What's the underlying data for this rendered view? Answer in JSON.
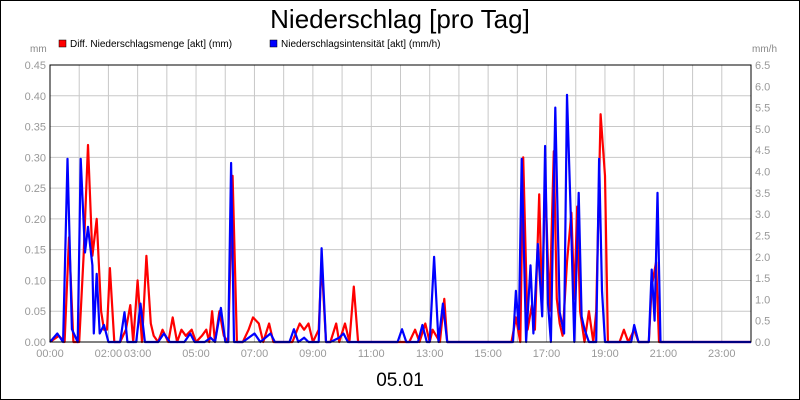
{
  "chart_data": {
    "type": "line",
    "title": "Niederschlag [pro Tag]",
    "xlabel": "05.01",
    "y_left_unit": "mm",
    "y_right_unit": "mm/h",
    "x_range_hours": [
      0,
      24
    ],
    "x_ticks": [
      {
        "hour": 0,
        "label": "00:00"
      },
      {
        "hour": 2,
        "label": "02:00"
      },
      {
        "hour": 3,
        "label": "03:00"
      },
      {
        "hour": 5,
        "label": "05:00"
      },
      {
        "hour": 7,
        "label": "07:00"
      },
      {
        "hour": 9,
        "label": "09:00"
      },
      {
        "hour": 11,
        "label": "11:00"
      },
      {
        "hour": 13,
        "label": "13:00"
      },
      {
        "hour": 15,
        "label": "15:00"
      },
      {
        "hour": 17,
        "label": "17:00"
      },
      {
        "hour": 19,
        "label": "19:00"
      },
      {
        "hour": 21,
        "label": "21:00"
      },
      {
        "hour": 23,
        "label": "23:00"
      }
    ],
    "y_left_range": [
      0,
      0.45
    ],
    "y_left_ticks": [
      "0.00",
      "0.05",
      "0.10",
      "0.15",
      "0.20",
      "0.25",
      "0.30",
      "0.35",
      "0.40",
      "0.45"
    ],
    "y_right_range": [
      0,
      6.5
    ],
    "y_right_ticks": [
      "0.0",
      "0.5",
      "1.0",
      "1.5",
      "2.0",
      "2.5",
      "3.0",
      "3.5",
      "4.0",
      "4.5",
      "5.0",
      "5.5",
      "6.0",
      "6.5"
    ],
    "grid": true,
    "legend_position": "top-left",
    "series": [
      {
        "name": "Diff. Niederschlagsmenge [akt] (mm)",
        "axis": "left",
        "color": "#ff0000",
        "points": [
          [
            0.0,
            0.0
          ],
          [
            0.3,
            0.01
          ],
          [
            0.5,
            0.0
          ],
          [
            0.65,
            0.17
          ],
          [
            0.8,
            0.0
          ],
          [
            1.0,
            0.0
          ],
          [
            1.15,
            0.14
          ],
          [
            1.3,
            0.32
          ],
          [
            1.45,
            0.14
          ],
          [
            1.6,
            0.2
          ],
          [
            1.75,
            0.05
          ],
          [
            1.85,
            0.02
          ],
          [
            1.95,
            0.02
          ],
          [
            2.05,
            0.12
          ],
          [
            2.2,
            0.0
          ],
          [
            2.4,
            0.0
          ],
          [
            2.6,
            0.02
          ],
          [
            2.75,
            0.06
          ],
          [
            2.85,
            0.0
          ],
          [
            3.0,
            0.1
          ],
          [
            3.15,
            0.0
          ],
          [
            3.3,
            0.14
          ],
          [
            3.45,
            0.03
          ],
          [
            3.55,
            0.01
          ],
          [
            3.7,
            0.0
          ],
          [
            3.85,
            0.02
          ],
          [
            4.05,
            0.0
          ],
          [
            4.2,
            0.04
          ],
          [
            4.35,
            0.0
          ],
          [
            4.5,
            0.02
          ],
          [
            4.65,
            0.01
          ],
          [
            4.85,
            0.02
          ],
          [
            5.0,
            0.0
          ],
          [
            5.2,
            0.01
          ],
          [
            5.35,
            0.02
          ],
          [
            5.45,
            0.0
          ],
          [
            5.55,
            0.05
          ],
          [
            5.65,
            0.0
          ],
          [
            5.8,
            0.05
          ],
          [
            5.95,
            0.01
          ],
          [
            6.1,
            0.0
          ],
          [
            6.25,
            0.27
          ],
          [
            6.4,
            0.0
          ],
          [
            6.6,
            0.0
          ],
          [
            6.8,
            0.02
          ],
          [
            6.95,
            0.04
          ],
          [
            7.15,
            0.03
          ],
          [
            7.3,
            0.0
          ],
          [
            7.5,
            0.03
          ],
          [
            7.65,
            0.0
          ],
          [
            7.85,
            0.0
          ],
          [
            8.0,
            0.0
          ],
          [
            8.3,
            0.0
          ],
          [
            8.55,
            0.03
          ],
          [
            8.7,
            0.02
          ],
          [
            8.85,
            0.03
          ],
          [
            9.0,
            0.0
          ],
          [
            9.2,
            0.02
          ],
          [
            9.3,
            0.13
          ],
          [
            9.45,
            0.0
          ],
          [
            9.6,
            0.0
          ],
          [
            9.8,
            0.03
          ],
          [
            9.9,
            0.0
          ],
          [
            10.1,
            0.03
          ],
          [
            10.25,
            0.0
          ],
          [
            10.4,
            0.09
          ],
          [
            10.55,
            0.0
          ],
          [
            10.8,
            0.0
          ],
          [
            11.0,
            0.0
          ],
          [
            12.0,
            0.0
          ],
          [
            12.3,
            0.0
          ],
          [
            12.5,
            0.02
          ],
          [
            12.65,
            0.0
          ],
          [
            12.85,
            0.03
          ],
          [
            13.0,
            0.0
          ],
          [
            13.1,
            0.02
          ],
          [
            13.35,
            0.0
          ],
          [
            13.5,
            0.07
          ],
          [
            13.6,
            0.0
          ],
          [
            14.0,
            0.0
          ],
          [
            15.0,
            0.0
          ],
          [
            15.8,
            0.0
          ],
          [
            15.95,
            0.04
          ],
          [
            16.1,
            0.0
          ],
          [
            16.2,
            0.3
          ],
          [
            16.35,
            0.02
          ],
          [
            16.5,
            0.06
          ],
          [
            16.6,
            0.02
          ],
          [
            16.75,
            0.24
          ],
          [
            16.85,
            0.05
          ],
          [
            16.95,
            0.27
          ],
          [
            17.1,
            0.05
          ],
          [
            17.25,
            0.31
          ],
          [
            17.35,
            0.07
          ],
          [
            17.45,
            0.03
          ],
          [
            17.55,
            0.01
          ],
          [
            17.7,
            0.13
          ],
          [
            17.85,
            0.21
          ],
          [
            17.95,
            0.07
          ],
          [
            18.05,
            0.22
          ],
          [
            18.15,
            0.05
          ],
          [
            18.3,
            0.0
          ],
          [
            18.45,
            0.05
          ],
          [
            18.6,
            0.0
          ],
          [
            18.7,
            0.05
          ],
          [
            18.85,
            0.37
          ],
          [
            19.0,
            0.27
          ],
          [
            19.1,
            0.0
          ],
          [
            19.5,
            0.0
          ],
          [
            19.65,
            0.02
          ],
          [
            19.8,
            0.0
          ],
          [
            20.0,
            0.02
          ],
          [
            20.15,
            0.0
          ],
          [
            20.5,
            0.0
          ],
          [
            20.6,
            0.09
          ],
          [
            20.75,
            0.13
          ],
          [
            20.85,
            0.0
          ],
          [
            21.2,
            0.0
          ],
          [
            24.0,
            0.0
          ]
        ]
      },
      {
        "name": "Niederschlagsintensität [akt] (mm/h)",
        "axis": "right",
        "color": "#0000ff",
        "points": [
          [
            0.0,
            0.0
          ],
          [
            0.25,
            0.2
          ],
          [
            0.45,
            0.0
          ],
          [
            0.6,
            4.3
          ],
          [
            0.75,
            0.3
          ],
          [
            0.95,
            0.0
          ],
          [
            1.05,
            4.3
          ],
          [
            1.2,
            2.1
          ],
          [
            1.3,
            2.7
          ],
          [
            1.45,
            1.8
          ],
          [
            1.5,
            0.2
          ],
          [
            1.6,
            1.6
          ],
          [
            1.7,
            0.2
          ],
          [
            1.85,
            0.4
          ],
          [
            2.0,
            0.0
          ],
          [
            2.4,
            0.0
          ],
          [
            2.55,
            0.7
          ],
          [
            2.65,
            0.0
          ],
          [
            2.8,
            0.0
          ],
          [
            2.95,
            0.0
          ],
          [
            3.1,
            0.9
          ],
          [
            3.25,
            0.0
          ],
          [
            3.45,
            0.0
          ],
          [
            3.7,
            0.0
          ],
          [
            3.9,
            0.2
          ],
          [
            4.1,
            0.0
          ],
          [
            4.6,
            0.0
          ],
          [
            4.8,
            0.2
          ],
          [
            4.95,
            0.0
          ],
          [
            5.3,
            0.0
          ],
          [
            5.5,
            0.1
          ],
          [
            5.65,
            0.0
          ],
          [
            5.85,
            0.8
          ],
          [
            6.0,
            0.0
          ],
          [
            6.1,
            0.0
          ],
          [
            6.2,
            4.2
          ],
          [
            6.3,
            0.0
          ],
          [
            6.6,
            0.0
          ],
          [
            7.0,
            0.2
          ],
          [
            7.2,
            0.0
          ],
          [
            7.55,
            0.2
          ],
          [
            7.7,
            0.0
          ],
          [
            8.2,
            0.0
          ],
          [
            8.35,
            0.3
          ],
          [
            8.5,
            0.0
          ],
          [
            8.7,
            0.1
          ],
          [
            8.85,
            0.0
          ],
          [
            9.2,
            0.0
          ],
          [
            9.3,
            2.2
          ],
          [
            9.45,
            0.0
          ],
          [
            9.6,
            0.0
          ],
          [
            9.9,
            0.1
          ],
          [
            10.05,
            0.2
          ],
          [
            10.2,
            0.0
          ],
          [
            10.5,
            0.0
          ],
          [
            11.0,
            0.0
          ],
          [
            11.9,
            0.0
          ],
          [
            12.05,
            0.3
          ],
          [
            12.2,
            0.0
          ],
          [
            12.6,
            0.0
          ],
          [
            12.75,
            0.4
          ],
          [
            12.9,
            0.0
          ],
          [
            13.0,
            0.0
          ],
          [
            13.15,
            2.0
          ],
          [
            13.3,
            0.0
          ],
          [
            13.45,
            0.9
          ],
          [
            13.6,
            0.0
          ],
          [
            14.0,
            0.0
          ],
          [
            15.0,
            0.0
          ],
          [
            15.85,
            0.0
          ],
          [
            15.95,
            1.2
          ],
          [
            16.05,
            0.3
          ],
          [
            16.15,
            4.3
          ],
          [
            16.3,
            0.0
          ],
          [
            16.45,
            1.8
          ],
          [
            16.55,
            0.2
          ],
          [
            16.7,
            2.3
          ],
          [
            16.85,
            0.6
          ],
          [
            16.95,
            4.6
          ],
          [
            17.05,
            0.9
          ],
          [
            17.15,
            0.0
          ],
          [
            17.3,
            5.5
          ],
          [
            17.45,
            0.7
          ],
          [
            17.6,
            0.2
          ],
          [
            17.7,
            5.8
          ],
          [
            17.85,
            2.5
          ],
          [
            17.95,
            0.0
          ],
          [
            18.1,
            3.5
          ],
          [
            18.2,
            0.6
          ],
          [
            18.3,
            0.3
          ],
          [
            18.45,
            0.0
          ],
          [
            18.6,
            0.0
          ],
          [
            18.7,
            0.0
          ],
          [
            18.8,
            4.3
          ],
          [
            18.9,
            1.2
          ],
          [
            19.0,
            0.0
          ],
          [
            19.1,
            0.0
          ],
          [
            19.5,
            0.0
          ],
          [
            19.9,
            0.0
          ],
          [
            20.0,
            0.4
          ],
          [
            20.15,
            0.0
          ],
          [
            20.5,
            0.0
          ],
          [
            20.6,
            1.7
          ],
          [
            20.7,
            0.5
          ],
          [
            20.8,
            3.5
          ],
          [
            20.9,
            0.0
          ],
          [
            21.2,
            0.0
          ],
          [
            24.0,
            0.0
          ]
        ]
      }
    ]
  }
}
